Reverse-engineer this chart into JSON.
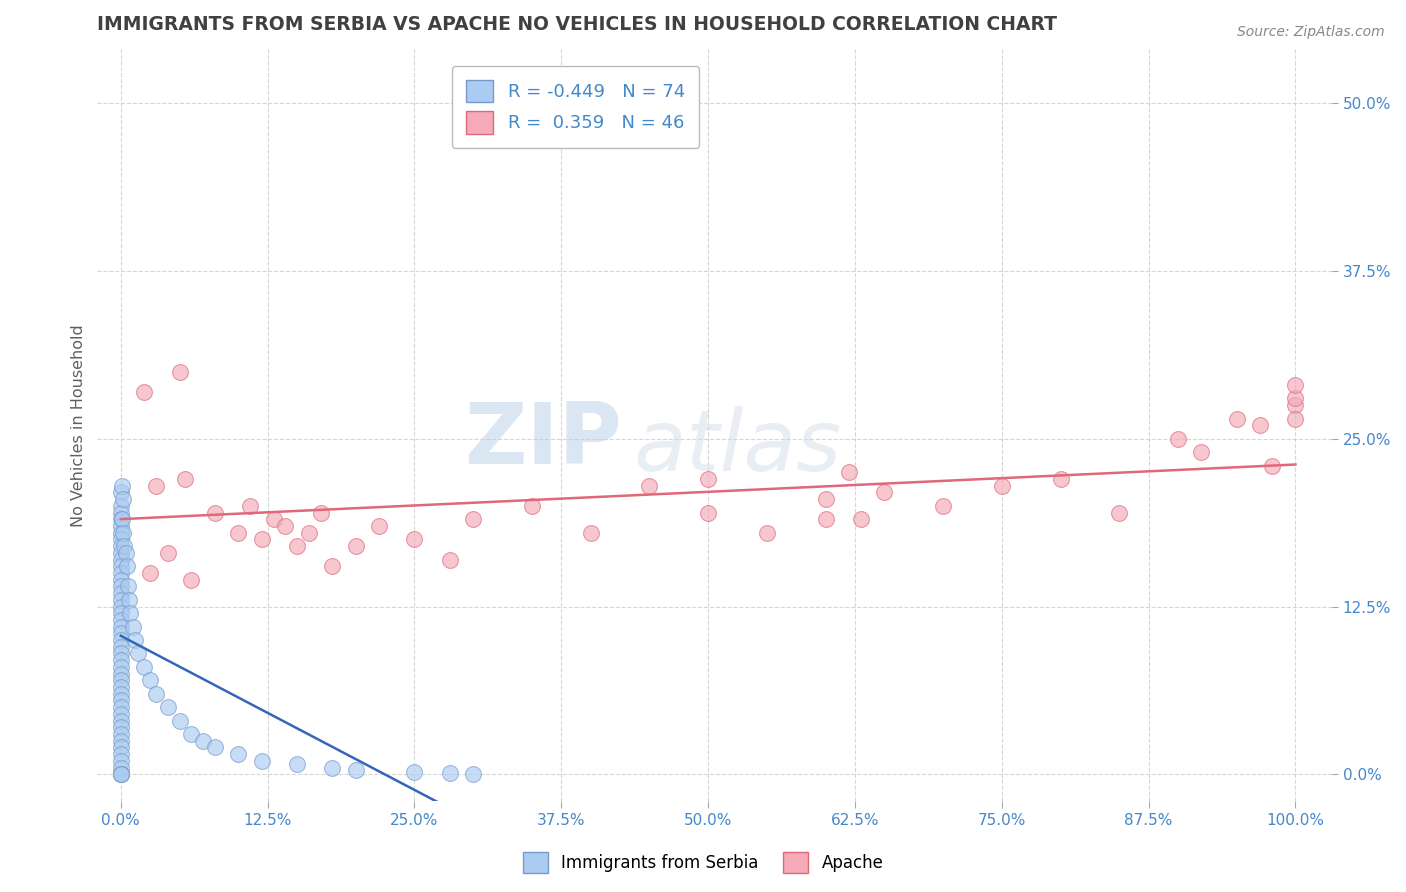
{
  "title": "IMMIGRANTS FROM SERBIA VS APACHE NO VEHICLES IN HOUSEHOLD CORRELATION CHART",
  "source_text": "Source: ZipAtlas.com",
  "ylabel": "No Vehicles in Household",
  "xlabel_ticks": [
    "0.0%",
    "12.5%",
    "25.0%",
    "37.5%",
    "50.0%",
    "62.5%",
    "75.0%",
    "87.5%",
    "100.0%"
  ],
  "xlabel_vals": [
    0,
    12.5,
    25.0,
    37.5,
    50.0,
    62.5,
    75.0,
    87.5,
    100.0
  ],
  "ylabel_ticks": [
    "0.0%",
    "12.5%",
    "25.0%",
    "37.5%",
    "50.0%"
  ],
  "ylabel_vals": [
    0,
    12.5,
    25.0,
    37.5,
    50.0
  ],
  "xlim": [
    -2,
    103
  ],
  "ylim": [
    -2,
    54
  ],
  "legend_labels": [
    "Immigrants from Serbia",
    "Apache"
  ],
  "serbia_color": "#aaccf0",
  "apache_color": "#f4aab8",
  "serbia_edge": "#7799cc",
  "apache_edge": "#e06878",
  "serbia_line_color": "#3366bb",
  "apache_line_color": "#e06878",
  "serbia_R": -0.449,
  "serbia_N": 74,
  "apache_R": 0.359,
  "apache_N": 46,
  "watermark_zip": "ZIP",
  "watermark_atlas": "atlas",
  "background_color": "#ffffff",
  "grid_color": "#cccccc",
  "title_color": "#404040",
  "legend_text_color": "#4488cc",
  "serbia_scatter_x": [
    0.0,
    0.0,
    0.0,
    0.0,
    0.0,
    0.0,
    0.0,
    0.0,
    0.0,
    0.0,
    0.0,
    0.0,
    0.0,
    0.0,
    0.0,
    0.0,
    0.0,
    0.0,
    0.0,
    0.0,
    0.0,
    0.0,
    0.0,
    0.0,
    0.0,
    0.0,
    0.0,
    0.0,
    0.0,
    0.0,
    0.0,
    0.0,
    0.0,
    0.0,
    0.0,
    0.0,
    0.0,
    0.0,
    0.0,
    0.0,
    0.0,
    0.0,
    0.0,
    0.0,
    0.0,
    0.1,
    0.1,
    0.2,
    0.2,
    0.3,
    0.4,
    0.5,
    0.6,
    0.7,
    0.8,
    1.0,
    1.2,
    1.5,
    2.0,
    2.5,
    3.0,
    4.0,
    5.0,
    6.0,
    7.0,
    8.0,
    10.0,
    12.0,
    15.0,
    18.0,
    20.0,
    25.0,
    28.0,
    30.0
  ],
  "serbia_scatter_y": [
    21.0,
    20.0,
    19.5,
    19.0,
    18.5,
    18.0,
    17.5,
    17.0,
    16.5,
    16.0,
    15.5,
    15.0,
    14.5,
    14.0,
    13.5,
    13.0,
    12.5,
    12.0,
    11.5,
    11.0,
    10.5,
    10.0,
    9.5,
    9.0,
    8.5,
    8.0,
    7.5,
    7.0,
    6.5,
    6.0,
    5.5,
    5.0,
    4.5,
    4.0,
    3.5,
    3.0,
    2.5,
    2.0,
    1.5,
    1.0,
    0.5,
    0.0,
    0.0,
    0.0,
    0.0,
    21.5,
    19.0,
    20.5,
    18.0,
    17.0,
    16.5,
    15.5,
    14.0,
    13.0,
    12.0,
    11.0,
    10.0,
    9.0,
    8.0,
    7.0,
    6.0,
    5.0,
    4.0,
    3.0,
    2.5,
    2.0,
    1.5,
    1.0,
    0.8,
    0.5,
    0.3,
    0.2,
    0.1,
    0.0
  ],
  "apache_scatter_x": [
    2.0,
    3.0,
    5.0,
    5.5,
    8.0,
    10.0,
    11.0,
    12.0,
    13.0,
    14.0,
    15.0,
    16.0,
    17.0,
    18.0,
    20.0,
    22.0,
    25.0,
    28.0,
    30.0,
    35.0,
    40.0,
    45.0,
    50.0,
    55.0,
    60.0,
    62.0,
    63.0,
    65.0,
    70.0,
    75.0,
    80.0,
    85.0,
    90.0,
    92.0,
    95.0,
    97.0,
    98.0,
    100.0,
    100.0,
    100.0,
    100.0,
    2.5,
    4.0,
    6.0,
    50.0,
    60.0
  ],
  "apache_scatter_y": [
    28.5,
    21.5,
    30.0,
    22.0,
    19.5,
    18.0,
    20.0,
    17.5,
    19.0,
    18.5,
    17.0,
    18.0,
    19.5,
    15.5,
    17.0,
    18.5,
    17.5,
    16.0,
    19.0,
    20.0,
    18.0,
    21.5,
    19.5,
    18.0,
    20.5,
    22.5,
    19.0,
    21.0,
    20.0,
    21.5,
    22.0,
    19.5,
    25.0,
    24.0,
    26.5,
    26.0,
    23.0,
    27.5,
    26.5,
    28.0,
    29.0,
    15.0,
    16.5,
    14.5,
    22.0,
    19.0
  ]
}
